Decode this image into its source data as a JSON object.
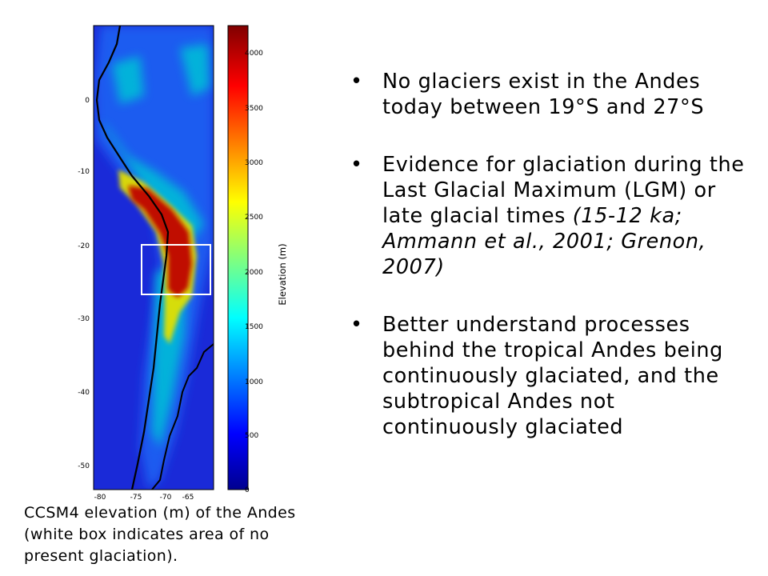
{
  "map": {
    "x_ticks": [
      "-80",
      "-75",
      "-70",
      "-65"
    ],
    "y_ticks": [
      "0",
      "-10",
      "-20",
      "-30",
      "-40",
      "-50"
    ],
    "colorbar_ticks": [
      "4000",
      "3500",
      "3000",
      "2500",
      "2000",
      "1500",
      "1000",
      "500",
      "0"
    ],
    "colorbar_label": "Elevation (m)",
    "colors": {
      "low": "#1428c8",
      "mid": "#00c8c8",
      "high": "#e8d800",
      "peak": "#b40000",
      "box": "#ffffff",
      "coast": "#000000"
    }
  },
  "bullets": [
    {
      "text": "No glaciers exist in the Andes today between 19°S and 27°S"
    },
    {
      "text": "Evidence for glaciation during the Last Glacial Maximum (LGM) or late glacial times ",
      "italic": "(15-12 ka; Ammann et al., 2001; Grenon, 2007)"
    },
    {
      "text": "Better understand processes behind the tropical Andes being continuously glaciated, and the subtropical Andes not continuously glaciated"
    }
  ],
  "bullet_symbol": "•",
  "caption": {
    "line1": "CCSM4 elevation (m) of the Andes",
    "line2": "(white box indicates area of no",
    "line3": "present glaciation)."
  }
}
